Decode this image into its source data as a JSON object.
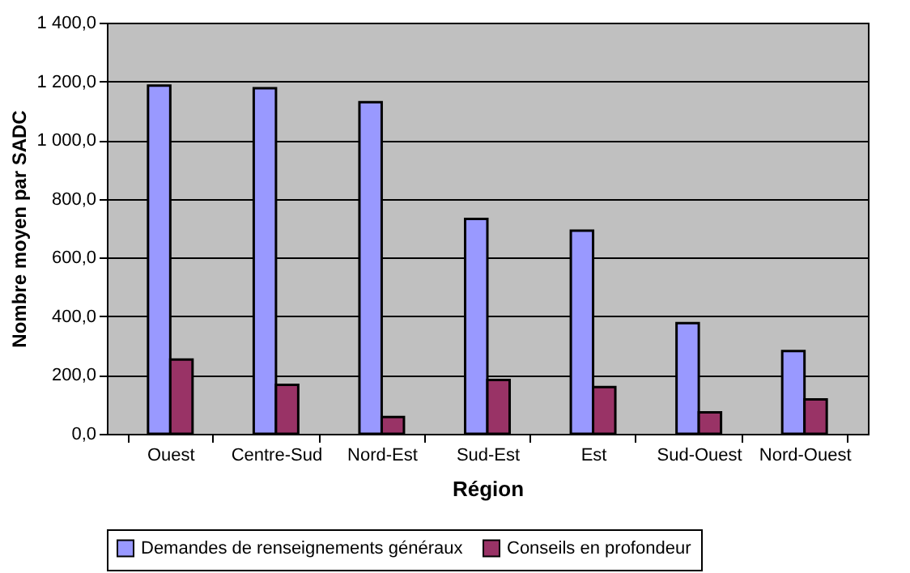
{
  "chart_data": {
    "type": "bar",
    "xlabel": "Région",
    "ylabel": "Nombre moyen par SADC",
    "categories": [
      "Ouest",
      "Centre-Sud",
      "Nord-Est",
      "Sud-Est",
      "Est",
      "Sud-Ouest",
      "Nord-Ouest"
    ],
    "series": [
      {
        "name": "Demandes de renseignements généraux",
        "color": "#9999ff",
        "values": [
          1186,
          1177,
          1129,
          732,
          692,
          377,
          282
        ]
      },
      {
        "name": "Conseils en profondeur",
        "color": "#993366",
        "values": [
          253,
          167,
          57,
          183,
          159,
          73,
          117
        ]
      }
    ],
    "ylim": [
      0,
      1400
    ],
    "yticks": [
      {
        "value": 0,
        "label": "0,0"
      },
      {
        "value": 200,
        "label": "200,0"
      },
      {
        "value": 400,
        "label": "400,0"
      },
      {
        "value": 600,
        "label": "600,0"
      },
      {
        "value": 800,
        "label": "800,0"
      },
      {
        "value": 1000,
        "label": "1 000,0"
      },
      {
        "value": 1200,
        "label": "1 200,0"
      },
      {
        "value": 1400,
        "label": "1 400,0"
      }
    ],
    "grid": "y",
    "legend": "bottom"
  }
}
